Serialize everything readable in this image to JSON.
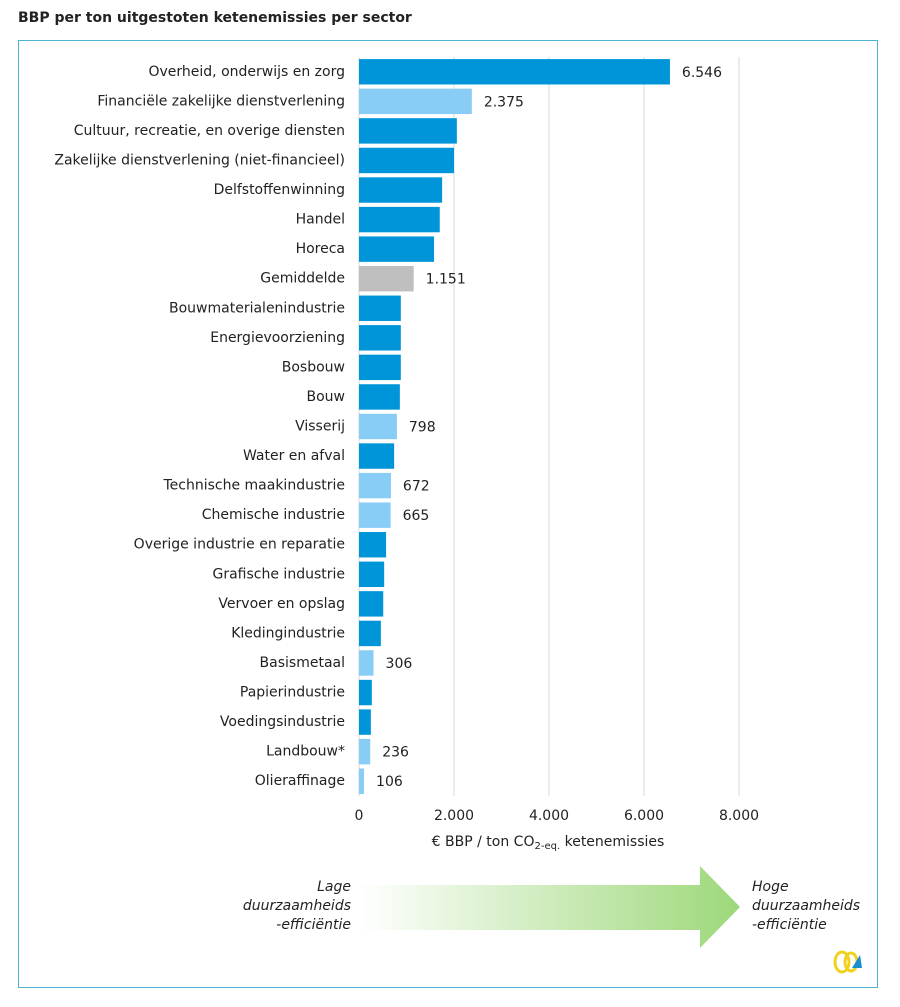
{
  "chart_data": {
    "type": "bar",
    "orientation": "horizontal",
    "title": "BBP per ton uitgestoten ketenemissies per sector",
    "categories": [
      "Overheid, onderwijs en zorg",
      "Financiële zakelijke dienstverlening",
      "Cultuur, recreatie, en overige diensten",
      "Zakelijke dienstverlening (niet-financieel)",
      "Delfstoffenwinning",
      "Handel",
      "Horeca",
      "Gemiddelde",
      "Bouwmaterialenindustrie",
      "Energievoorziening",
      "Bosbouw",
      "Bouw",
      "Visserij",
      "Water en afval",
      "Technische maakindustrie",
      "Chemische industrie",
      "Overige industrie en reparatie",
      "Grafische industrie",
      "Vervoer en opslag",
      "Kledingindustrie",
      "Basismetaal",
      "Papierindustrie",
      "Voedingsindustrie",
      "Landbouw*",
      "Olieraffinage"
    ],
    "values": [
      6546,
      2375,
      2060,
      2000,
      1750,
      1700,
      1580,
      1151,
      880,
      880,
      880,
      860,
      798,
      740,
      672,
      665,
      570,
      530,
      510,
      460,
      306,
      270,
      250,
      236,
      106
    ],
    "value_labels": [
      "6.546",
      "2.375",
      null,
      null,
      null,
      null,
      null,
      "1.151",
      null,
      null,
      null,
      null,
      "798",
      null,
      "672",
      "665",
      null,
      null,
      null,
      null,
      "306",
      null,
      null,
      "236",
      "106"
    ],
    "colors": [
      "#0095d9",
      "#88cdf6",
      "#0095d9",
      "#0095d9",
      "#0095d9",
      "#0095d9",
      "#0095d9",
      "#bfbfbf",
      "#0095d9",
      "#0095d9",
      "#0095d9",
      "#0095d9",
      "#88cdf6",
      "#0095d9",
      "#88cdf6",
      "#88cdf6",
      "#0095d9",
      "#0095d9",
      "#0095d9",
      "#0095d9",
      "#88cdf6",
      "#0095d9",
      "#0095d9",
      "#88cdf6",
      "#88cdf6"
    ],
    "xlim": [
      0,
      8000
    ],
    "xticks": [
      0,
      {
        "value": 2000,
        "label": "2.000"
      },
      {
        "value": 4000,
        "label": "4.000"
      },
      {
        "value": 6000,
        "label": "6.000"
      },
      {
        "value": 8000,
        "label": "8.000"
      }
    ],
    "grid": true,
    "x_label": [
      "€ BBP / ton CO",
      "2-eq.",
      " ketenemissies"
    ],
    "arrow_left_label": [
      "Lage",
      "duurzaamheids",
      "-efficiëntie"
    ],
    "arrow_right_label": [
      "Hoge",
      "duurzaamheids",
      "-efficiëntie"
    ]
  }
}
